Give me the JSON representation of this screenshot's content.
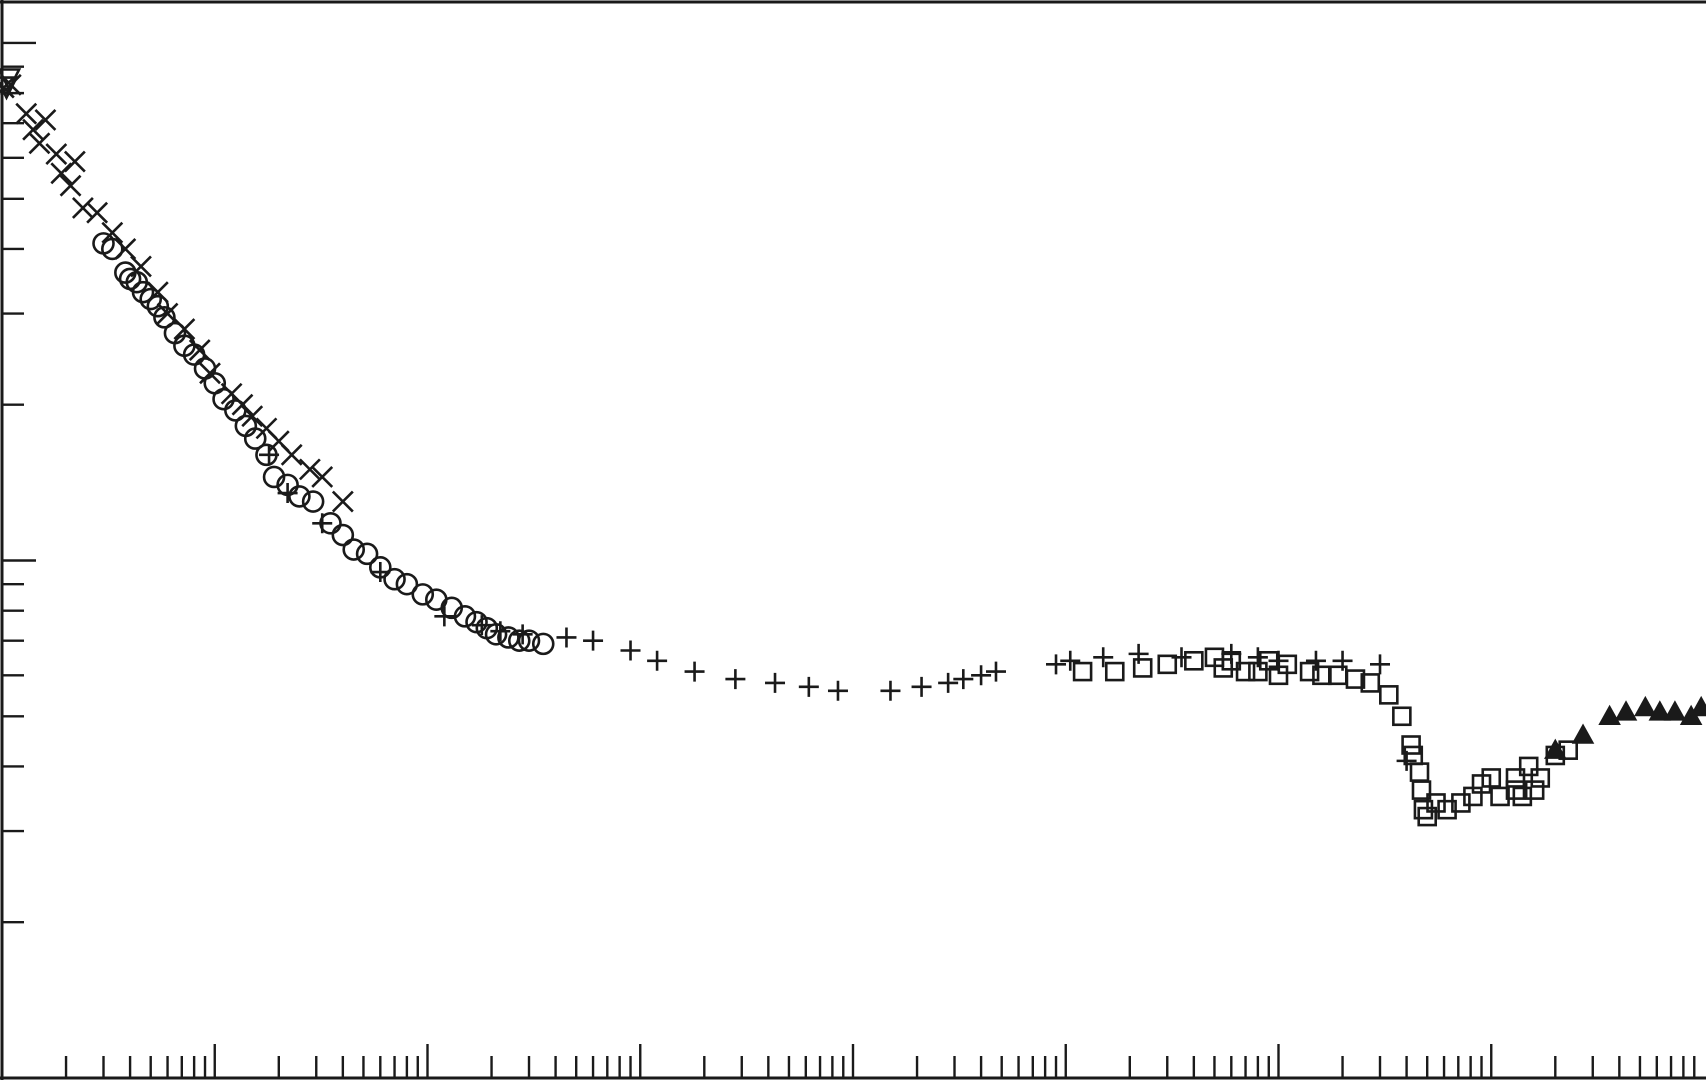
{
  "chart_data": {
    "type": "scatter",
    "title": "",
    "xlabel": "",
    "ylabel": "",
    "x_scale": "log",
    "y_scale": "log",
    "xlim": [
      0.1,
      10000000
    ],
    "ylim": [
      0.1,
      12
    ],
    "x_decade_ticks": [
      1,
      10,
      100,
      1000,
      10000,
      100000,
      1000000,
      10000000
    ],
    "y_decade_ticks": [
      1,
      10
    ],
    "grid": false,
    "legend": "none",
    "series": [
      {
        "name": "triangle-down",
        "marker": "triangle-down-open",
        "points": [
          [
            0.108,
            8.5
          ],
          [
            0.105,
            8.2
          ]
        ]
      },
      {
        "name": "x-cross",
        "marker": "x",
        "points": [
          [
            0.102,
            8.2
          ],
          [
            0.11,
            8.3
          ],
          [
            0.13,
            7.3
          ],
          [
            0.14,
            6.8
          ],
          [
            0.15,
            6.4
          ],
          [
            0.16,
            7.1
          ],
          [
            0.18,
            6.1
          ],
          [
            0.19,
            5.6
          ],
          [
            0.21,
            5.3
          ],
          [
            0.22,
            5.9
          ],
          [
            0.24,
            4.8
          ],
          [
            0.28,
            4.7
          ],
          [
            0.33,
            4.3
          ],
          [
            0.38,
            4.0
          ],
          [
            0.45,
            3.7
          ],
          [
            0.54,
            3.3
          ],
          [
            0.6,
            3.0
          ],
          [
            0.72,
            2.8
          ],
          [
            0.85,
            2.55
          ],
          [
            0.95,
            2.3
          ],
          [
            1.2,
            2.1
          ],
          [
            1.35,
            2.0
          ],
          [
            1.5,
            1.9
          ],
          [
            1.75,
            1.8
          ],
          [
            2.0,
            1.7
          ],
          [
            2.3,
            1.6
          ],
          [
            2.8,
            1.5
          ],
          [
            3.2,
            1.45
          ],
          [
            4.0,
            1.3
          ]
        ]
      },
      {
        "name": "open-circle",
        "marker": "circle-open",
        "points": [
          [
            0.3,
            4.1
          ],
          [
            0.33,
            4.0
          ],
          [
            0.38,
            3.6
          ],
          [
            0.4,
            3.5
          ],
          [
            0.43,
            3.45
          ],
          [
            0.46,
            3.3
          ],
          [
            0.5,
            3.2
          ],
          [
            0.54,
            3.1
          ],
          [
            0.58,
            2.95
          ],
          [
            0.65,
            2.75
          ],
          [
            0.72,
            2.6
          ],
          [
            0.8,
            2.5
          ],
          [
            0.9,
            2.35
          ],
          [
            1.0,
            2.2
          ],
          [
            1.1,
            2.05
          ],
          [
            1.25,
            1.95
          ],
          [
            1.4,
            1.82
          ],
          [
            1.55,
            1.72
          ],
          [
            1.75,
            1.6
          ],
          [
            1.9,
            1.45
          ],
          [
            2.2,
            1.4
          ],
          [
            2.5,
            1.33
          ],
          [
            2.9,
            1.3
          ],
          [
            3.5,
            1.18
          ],
          [
            4.0,
            1.12
          ],
          [
            4.5,
            1.05
          ],
          [
            5.2,
            1.03
          ],
          [
            6.0,
            0.97
          ],
          [
            7.0,
            0.92
          ],
          [
            8.0,
            0.9
          ],
          [
            9.5,
            0.86
          ],
          [
            11.0,
            0.84
          ],
          [
            13.0,
            0.81
          ],
          [
            15.0,
            0.78
          ],
          [
            17.0,
            0.76
          ],
          [
            19.0,
            0.74
          ],
          [
            21.0,
            0.72
          ],
          [
            24.0,
            0.71
          ],
          [
            27.0,
            0.7
          ],
          [
            30.0,
            0.7
          ],
          [
            35.0,
            0.69
          ]
        ]
      },
      {
        "name": "plus",
        "marker": "plus",
        "points": [
          [
            1.8,
            1.6
          ],
          [
            2.2,
            1.35
          ],
          [
            3.2,
            1.18
          ],
          [
            6.0,
            0.95
          ],
          [
            12.0,
            0.78
          ],
          [
            18.0,
            0.75
          ],
          [
            22.0,
            0.73
          ],
          [
            28.0,
            0.72
          ],
          [
            45.0,
            0.71
          ],
          [
            60.0,
            0.7
          ],
          [
            90.0,
            0.67
          ],
          [
            120.0,
            0.64
          ],
          [
            180.0,
            0.61
          ],
          [
            280.0,
            0.59
          ],
          [
            430.0,
            0.58
          ],
          [
            620.0,
            0.57
          ],
          [
            850.0,
            0.56
          ],
          [
            1500.0,
            0.56
          ],
          [
            2100.0,
            0.57
          ],
          [
            2800.0,
            0.58
          ],
          [
            3300.0,
            0.59
          ],
          [
            4000.0,
            0.6
          ],
          [
            4700.0,
            0.61
          ],
          [
            9000.0,
            0.63
          ],
          [
            10500.0,
            0.64
          ],
          [
            15000.0,
            0.65
          ],
          [
            22000.0,
            0.66
          ],
          [
            35000.0,
            0.65
          ],
          [
            60000.0,
            0.66
          ],
          [
            80000.0,
            0.65
          ],
          [
            100000.0,
            0.64
          ],
          [
            150000.0,
            0.64
          ],
          [
            200000.0,
            0.64
          ],
          [
            300000.0,
            0.63
          ],
          [
            400000.0,
            0.41
          ]
        ]
      },
      {
        "name": "open-square",
        "marker": "square-open",
        "points": [
          [
            12000.0,
            0.61
          ],
          [
            17000.0,
            0.61
          ],
          [
            23000.0,
            0.62
          ],
          [
            30000.0,
            0.63
          ],
          [
            40000.0,
            0.64
          ],
          [
            50000.0,
            0.65
          ],
          [
            55000.0,
            0.62
          ],
          [
            60000.0,
            0.64
          ],
          [
            70000.0,
            0.61
          ],
          [
            80000.0,
            0.61
          ],
          [
            90000.0,
            0.64
          ],
          [
            100000.0,
            0.6
          ],
          [
            110000.0,
            0.63
          ],
          [
            140000.0,
            0.61
          ],
          [
            160000.0,
            0.6
          ],
          [
            190000.0,
            0.6
          ],
          [
            230000.0,
            0.59
          ],
          [
            270000.0,
            0.58
          ],
          [
            330000.0,
            0.55
          ],
          [
            380000.0,
            0.5
          ],
          [
            420000.0,
            0.44
          ],
          [
            430000.0,
            0.42
          ],
          [
            460000.0,
            0.39
          ],
          [
            470000.0,
            0.36
          ],
          [
            480000.0,
            0.33
          ],
          [
            500000.0,
            0.32
          ],
          [
            550000.0,
            0.34
          ],
          [
            620000.0,
            0.33
          ],
          [
            720000.0,
            0.34
          ],
          [
            820000.0,
            0.35
          ],
          [
            900000.0,
            0.37
          ],
          [
            1000000.0,
            0.38
          ],
          [
            1100000.0,
            0.35
          ],
          [
            1300000.0,
            0.36
          ],
          [
            1400000.0,
            0.35
          ],
          [
            1600000.0,
            0.36
          ],
          [
            1700000.0,
            0.38
          ],
          [
            2000000.0,
            0.42
          ],
          [
            2300000.0,
            0.43
          ],
          [
            1300000.0,
            0.38
          ],
          [
            1500000.0,
            0.4
          ]
        ]
      },
      {
        "name": "filled-triangle",
        "marker": "triangle-up-filled",
        "points": [
          [
            2000000.0,
            0.43
          ],
          [
            2700000.0,
            0.46
          ],
          [
            3600000.0,
            0.5
          ],
          [
            4300000.0,
            0.51
          ],
          [
            5300000.0,
            0.52
          ],
          [
            6200000.0,
            0.51
          ],
          [
            7300000.0,
            0.51
          ],
          [
            8700000.0,
            0.5
          ],
          [
            9700000.0,
            0.52
          ]
        ]
      }
    ]
  }
}
